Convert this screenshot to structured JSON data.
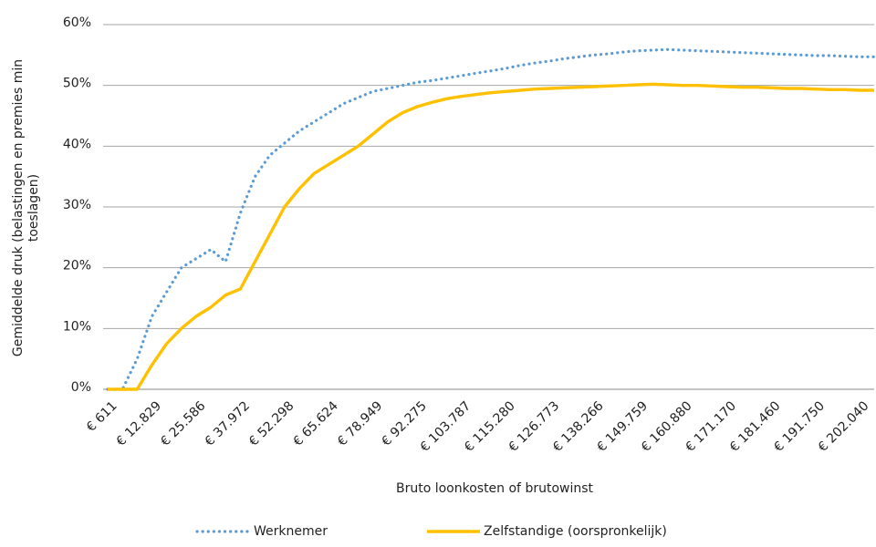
{
  "chart_data": {
    "type": "line",
    "y_label": [
      "Gemiddelde druk  (belastingen en premies min",
      "toeslagen)"
    ],
    "x_label": "Bruto loonkosten of brutowinst",
    "categories": [
      "€ 611",
      null,
      null,
      "€ 12.829",
      null,
      null,
      "€ 25.586",
      null,
      null,
      "€ 37.972",
      null,
      null,
      "€ 52.298",
      null,
      null,
      "€ 65.624",
      null,
      null,
      "€ 78.949",
      null,
      null,
      "€ 92.275",
      null,
      null,
      "€ 103.787",
      null,
      null,
      "€ 115.280",
      null,
      null,
      "€ 126.773",
      null,
      null,
      "€ 138.266",
      null,
      null,
      "€ 149.759",
      null,
      null,
      "€ 160.880",
      null,
      null,
      "€ 171.170",
      null,
      null,
      "€ 181.460",
      null,
      null,
      "€ 191.750",
      null,
      null,
      "€ 202.040",
      null
    ],
    "series": [
      {
        "name": "Werknemer",
        "color": "#5b9bd5",
        "style": "dotted",
        "values": [
          0,
          0,
          5,
          12,
          16,
          20,
          21.5,
          23,
          21,
          29,
          35,
          38.5,
          40.5,
          42.5,
          44,
          45.5,
          47,
          48,
          49,
          49.5,
          50,
          50.5,
          50.8,
          51.2,
          51.6,
          52,
          52.4,
          52.8,
          53.3,
          53.7,
          54,
          54.4,
          54.7,
          55,
          55.2,
          55.5,
          55.7,
          55.8,
          55.9,
          55.8,
          55.7,
          55.6,
          55.5,
          55.4,
          55.3,
          55.2,
          55.1,
          55,
          54.9,
          54.9,
          54.8,
          54.7,
          54.7
        ]
      },
      {
        "name": "Zelfstandige (oorspronkelijk)",
        "color": "#ffc000",
        "style": "solid",
        "values": [
          0,
          0,
          0,
          4,
          7.5,
          10,
          12,
          13.5,
          15.5,
          16.5,
          21,
          25.5,
          30,
          33,
          35.5,
          37,
          38.5,
          40,
          42,
          44,
          45.5,
          46.5,
          47.2,
          47.8,
          48.2,
          48.5,
          48.8,
          49,
          49.2,
          49.4,
          49.5,
          49.6,
          49.7,
          49.8,
          49.9,
          50,
          50.1,
          50.2,
          50.1,
          50,
          50,
          49.9,
          49.8,
          49.7,
          49.7,
          49.6,
          49.5,
          49.5,
          49.4,
          49.3,
          49.3,
          49.2,
          49.2
        ]
      }
    ],
    "ylim": [
      0,
      60
    ],
    "yticks": [
      {
        "value": 0,
        "label": "0%"
      },
      {
        "value": 10,
        "label": "10%"
      },
      {
        "value": 20,
        "label": "20%"
      },
      {
        "value": 30,
        "label": "30%"
      },
      {
        "value": 40,
        "label": "40%"
      },
      {
        "value": 50,
        "label": "50%"
      },
      {
        "value": 60,
        "label": "60%"
      }
    ],
    "grid": true,
    "legend": "bottom"
  }
}
